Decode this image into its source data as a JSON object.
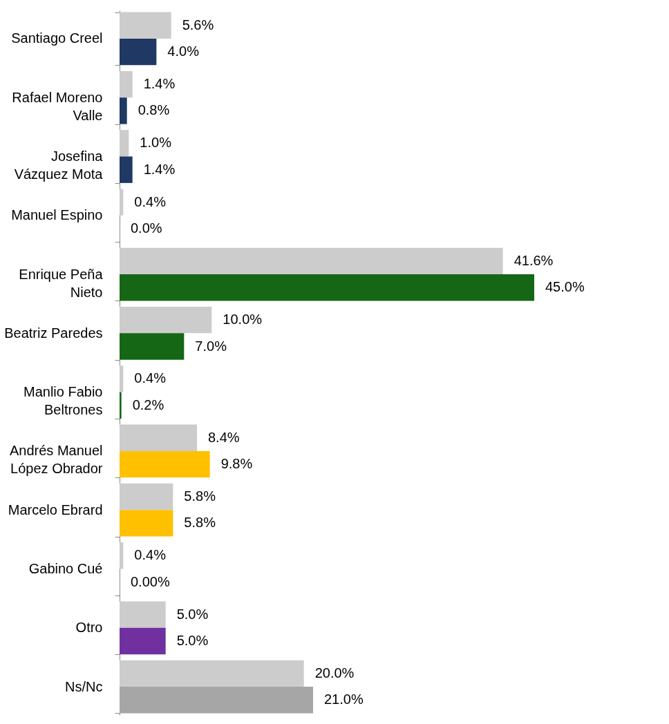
{
  "chart_data": {
    "type": "bar",
    "orientation": "horizontal",
    "categories": [
      "Santiago Creel",
      "Rafael Moreno Valle",
      "Josefina Vázquez Mota",
      "Manuel Espino",
      "Enrique Peña Nieto",
      "Beatriz Paredes",
      "Manlio Fabio Beltrones",
      "Andrés Manuel López Obrador",
      "Marcelo Ebrard",
      "Gabino Cué",
      "Otro",
      "Ns/Nc"
    ],
    "series": [
      {
        "color": "#cccccc",
        "values": [
          5.6,
          1.4,
          1.0,
          0.4,
          41.6,
          10.0,
          0.4,
          8.4,
          5.8,
          0.4,
          5.0,
          20.0
        ],
        "value_labels": [
          "5.6%",
          "1.4%",
          "1.0%",
          "0.4%",
          "41.6%",
          "10.0%",
          "0.4%",
          "8.4%",
          "5.8%",
          "0.4%",
          "5.0%",
          "20.0%"
        ]
      },
      {
        "colors": [
          "#1f3864",
          "#1f3864",
          "#1f3864",
          "#1f3864",
          "#156615",
          "#156615",
          "#156615",
          "#ffc000",
          "#ffc000",
          "#ffc000",
          "#7030a0",
          "#a6a6a6"
        ],
        "values": [
          4.0,
          0.8,
          1.4,
          0.0,
          45.0,
          7.0,
          0.2,
          9.8,
          5.8,
          0.0,
          5.0,
          21.0
        ],
        "value_labels": [
          "4.0%",
          "0.8%",
          "1.4%",
          "0.0%",
          "45.0%",
          "7.0%",
          "0.2%",
          "9.8%",
          "5.8%",
          "0.00%",
          "5.0%",
          "21.0%"
        ]
      }
    ]
  }
}
